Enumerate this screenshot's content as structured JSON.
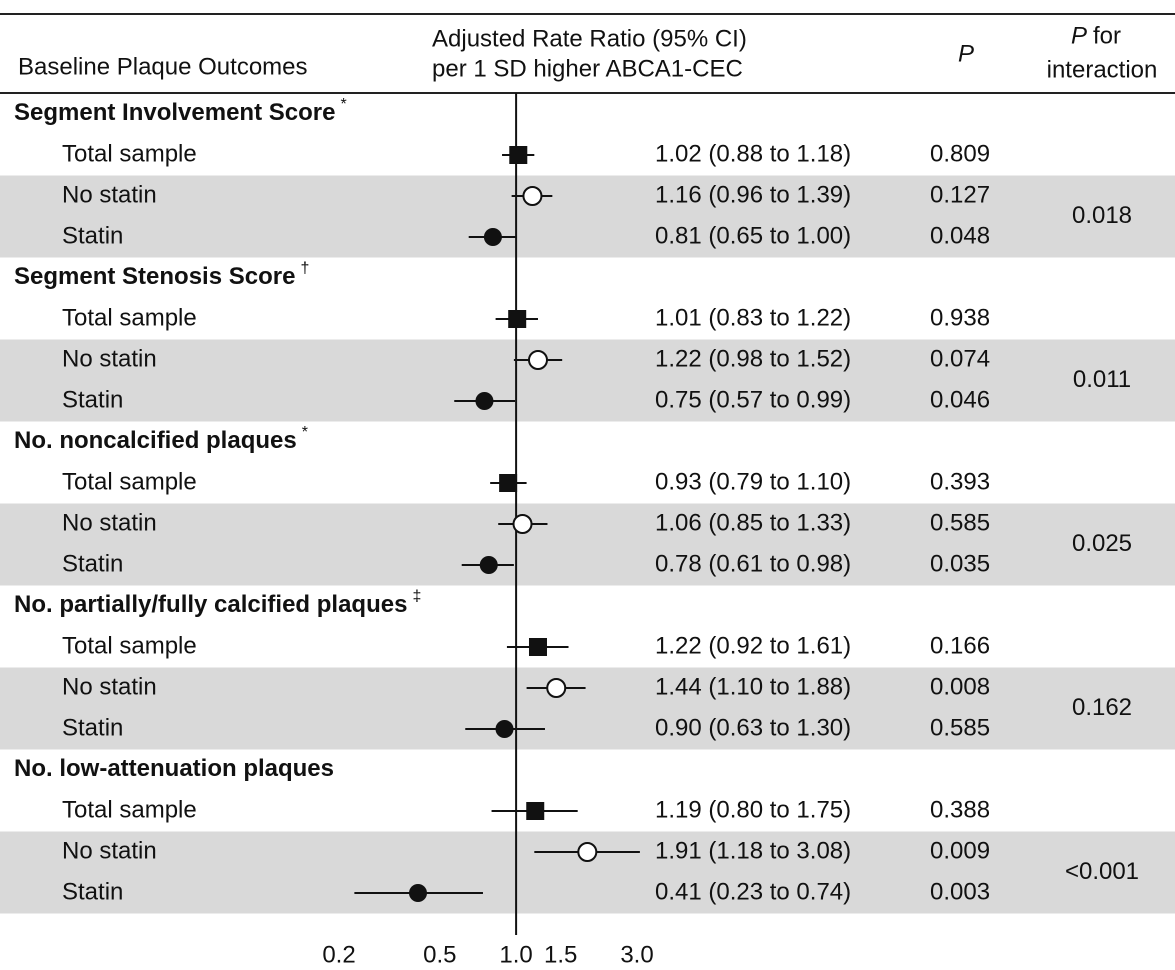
{
  "chart_data": {
    "type": "forest",
    "header": {
      "outcome": "Baseline Plaque Outcomes",
      "estimate": [
        "Adjusted Rate Ratio (95% CI)",
        "per 1 SD higher ABCA1-CEC"
      ],
      "p": "P",
      "interaction": {
        "italic": "P",
        "rest": "for",
        "line2": "interaction"
      }
    },
    "groups": [
      {
        "title": "Segment Involvement Score",
        "sup": "*",
        "p_interaction": 0.018,
        "rows": [
          {
            "label": "Total sample",
            "marker": "square",
            "value": 1.02,
            "lower": 0.88,
            "upper": 1.18,
            "ci_label": "1.02 (0.88 to 1.18)",
            "p": 0.809
          },
          {
            "label": "No statin",
            "marker": "open-circle",
            "value": 1.16,
            "lower": 0.96,
            "upper": 1.39,
            "ci_label": "1.16 (0.96 to 1.39)",
            "p": 0.127
          },
          {
            "label": "Statin",
            "marker": "circle",
            "value": 0.81,
            "lower": 0.65,
            "upper": 1.0,
            "ci_label": "0.81 (0.65 to 1.00)",
            "p": 0.048
          }
        ]
      },
      {
        "title": "Segment Stenosis Score",
        "sup": "†",
        "p_interaction": 0.011,
        "rows": [
          {
            "label": "Total sample",
            "marker": "square",
            "value": 1.01,
            "lower": 0.83,
            "upper": 1.22,
            "ci_label": "1.01 (0.83 to 1.22)",
            "p": 0.938
          },
          {
            "label": "No statin",
            "marker": "open-circle",
            "value": 1.22,
            "lower": 0.98,
            "upper": 1.52,
            "ci_label": "1.22 (0.98 to 1.52)",
            "p": 0.074
          },
          {
            "label": "Statin",
            "marker": "circle",
            "value": 0.75,
            "lower": 0.57,
            "upper": 0.99,
            "ci_label": "0.75 (0.57 to 0.99)",
            "p": 0.046
          }
        ]
      },
      {
        "title": "No. noncalcified plaques",
        "sup": "*",
        "p_interaction": 0.025,
        "rows": [
          {
            "label": "Total sample",
            "marker": "square",
            "value": 0.93,
            "lower": 0.79,
            "upper": 1.1,
            "ci_label": "0.93 (0.79 to 1.10)",
            "p": 0.393
          },
          {
            "label": "No statin",
            "marker": "open-circle",
            "value": 1.06,
            "lower": 0.85,
            "upper": 1.33,
            "ci_label": "1.06 (0.85 to 1.33)",
            "p": 0.585
          },
          {
            "label": "Statin",
            "marker": "circle",
            "value": 0.78,
            "lower": 0.61,
            "upper": 0.98,
            "ci_label": "0.78 (0.61 to 0.98)",
            "p": 0.035
          }
        ]
      },
      {
        "title": "No. partially/fully calcified plaques",
        "sup": "‡",
        "p_interaction": 0.162,
        "rows": [
          {
            "label": "Total sample",
            "marker": "square",
            "value": 1.22,
            "lower": 0.92,
            "upper": 1.61,
            "ci_label": "1.22 (0.92 to 1.61)",
            "p": 0.166
          },
          {
            "label": "No statin",
            "marker": "open-circle",
            "value": 1.44,
            "lower": 1.1,
            "upper": 1.88,
            "ci_label": "1.44 (1.10 to 1.88)",
            "p": 0.008
          },
          {
            "label": "Statin",
            "marker": "circle",
            "value": 0.9,
            "lower": 0.63,
            "upper": 1.3,
            "ci_label": "0.90 (0.63 to 1.30)",
            "p": 0.585
          }
        ]
      },
      {
        "title": "No. low-attenuation plaques",
        "p_interaction": "<0.001",
        "rows": [
          {
            "label": "Total sample",
            "marker": "square",
            "value": 1.19,
            "lower": 0.8,
            "upper": 1.75,
            "ci_label": "1.19 (0.80 to 1.75)",
            "p": 0.388
          },
          {
            "label": "No statin",
            "marker": "open-circle",
            "value": 1.91,
            "lower": 1.18,
            "upper": 3.08,
            "ci_label": "1.91 (1.18 to 3.08)",
            "p": 0.009
          },
          {
            "label": "Statin",
            "marker": "circle",
            "value": 0.41,
            "lower": 0.23,
            "upper": 0.74,
            "ci_label": "0.41 (0.23 to 0.74)",
            "p": 0.003
          }
        ]
      }
    ],
    "xscale": "log",
    "xlim": [
      0.2,
      3.0
    ],
    "xticks": [
      0.2,
      0.5,
      {
        "value": 1.0,
        "label": "1.0"
      },
      1.5,
      {
        "value": 3.0,
        "label": "3.0"
      }
    ],
    "band_color": "#d9d9d9"
  }
}
